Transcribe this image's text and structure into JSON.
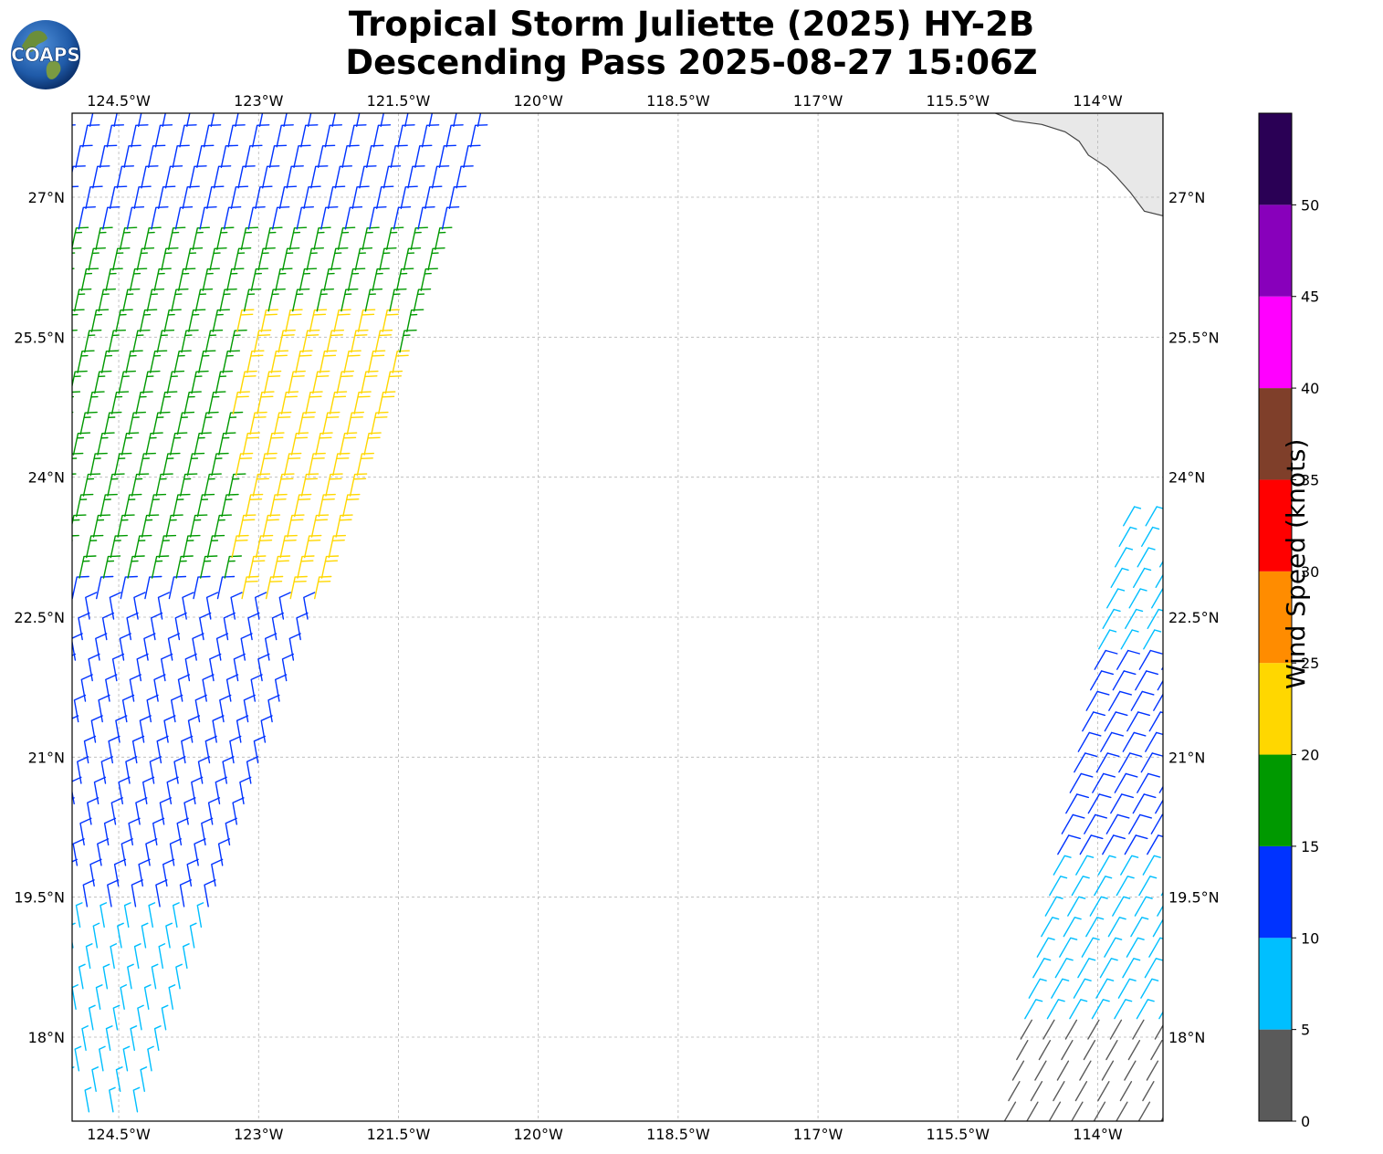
{
  "title": {
    "line1": "Tropical Storm Juliette (2025) HY-2B",
    "line2": "Descending Pass 2025-08-27 15:06Z"
  },
  "logo": {
    "text": "COAPS",
    "icon": "globe-logo-icon"
  },
  "map": {
    "lon_range": [
      -125.0,
      -113.3
    ],
    "lat_range": [
      17.1,
      27.9
    ],
    "lon_ticks": [
      {
        "value": -124.5,
        "label": "124.5°W"
      },
      {
        "value": -123.0,
        "label": "123°W"
      },
      {
        "value": -121.5,
        "label": "121.5°W"
      },
      {
        "value": -120.0,
        "label": "120°W"
      },
      {
        "value": -118.5,
        "label": "118.5°W"
      },
      {
        "value": -117.0,
        "label": "117°W"
      },
      {
        "value": -115.5,
        "label": "115.5°W"
      },
      {
        "value": -114.0,
        "label": "114°W"
      }
    ],
    "lat_ticks": [
      {
        "value": 27.0,
        "label": "27°N"
      },
      {
        "value": 25.5,
        "label": "25.5°N"
      },
      {
        "value": 24.0,
        "label": "24°N"
      },
      {
        "value": 22.5,
        "label": "22.5°N"
      },
      {
        "value": 21.0,
        "label": "21°N"
      },
      {
        "value": 19.5,
        "label": "19.5°N"
      },
      {
        "value": 18.0,
        "label": "18°N"
      }
    ],
    "gridlines": true,
    "land_color": "#e8e8e8",
    "coast_color": "#444444"
  },
  "colorbar": {
    "label": "Wind Speed (knots)",
    "min": 0,
    "max": 55,
    "bins": [
      {
        "from": 0,
        "to": 5,
        "color": "#5a5a5a"
      },
      {
        "from": 5,
        "to": 10,
        "color": "#00bfff"
      },
      {
        "from": 10,
        "to": 15,
        "color": "#0033ff"
      },
      {
        "from": 15,
        "to": 20,
        "color": "#009900"
      },
      {
        "from": 20,
        "to": 25,
        "color": "#ffd700"
      },
      {
        "from": 25,
        "to": 30,
        "color": "#ff8c00"
      },
      {
        "from": 30,
        "to": 35,
        "color": "#ff0000"
      },
      {
        "from": 35,
        "to": 40,
        "color": "#7f3f2a"
      },
      {
        "from": 40,
        "to": 45,
        "color": "#ff00ff"
      },
      {
        "from": 45,
        "to": 50,
        "color": "#8800bb"
      },
      {
        "from": 50,
        "to": 55,
        "color": "#2a0055"
      }
    ],
    "ticks": [
      "0",
      "5",
      "10",
      "15",
      "20",
      "25",
      "30",
      "35",
      "40",
      "45",
      "50"
    ]
  },
  "swaths": {
    "west": {
      "lat_bottom": 17.2,
      "lat_top": 27.9,
      "lon_west_bottom": -125.0,
      "lon_east_bottom": -124.3,
      "lon_west_top": -124.8,
      "lon_east_top": -120.6,
      "speed_bands": [
        {
          "lat_from": 17.2,
          "lat_to": 19.3,
          "speed": 7
        },
        {
          "lat_from": 19.3,
          "lat_to": 22.7,
          "speed": 12
        },
        {
          "lat_from": 22.7,
          "lat_to": 26.5,
          "speed": 17
        },
        {
          "lat_from": 26.5,
          "lat_to": 27.9,
          "speed": 12
        }
      ],
      "core": {
        "lat_from": 22.6,
        "lat_to": 25.6,
        "lon_from": -123.3,
        "lon_to": -121.5,
        "speed": 22
      }
    },
    "east": {
      "lat_bottom": 17.1,
      "lat_top": 23.6,
      "lon_west_bottom": -115.0,
      "lon_east_bottom": -113.3,
      "lon_west_top": -113.7,
      "lon_east_top": -113.3,
      "speed_bands": [
        {
          "lat_from": 17.1,
          "lat_to": 18.1,
          "speed": 3
        },
        {
          "lat_from": 18.1,
          "lat_to": 19.8,
          "speed": 7
        },
        {
          "lat_from": 19.8,
          "lat_to": 22.0,
          "speed": 12
        },
        {
          "lat_from": 22.0,
          "lat_to": 23.6,
          "speed": 7
        }
      ]
    }
  }
}
